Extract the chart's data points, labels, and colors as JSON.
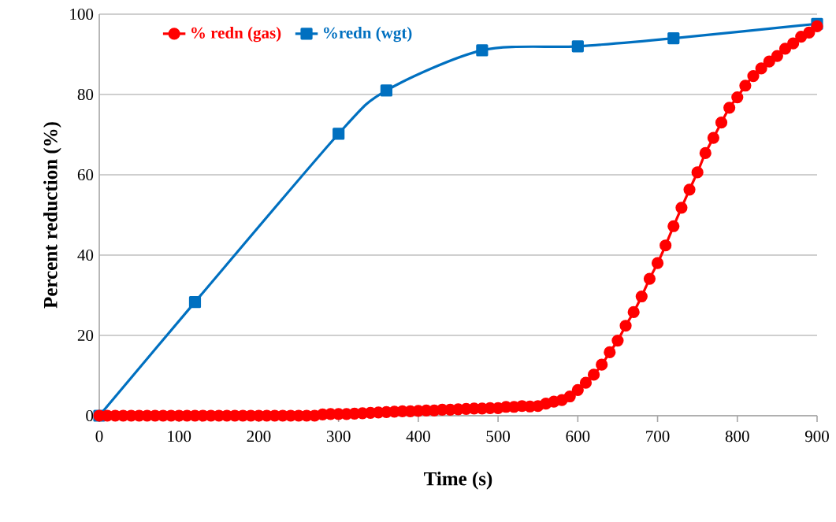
{
  "chart_data": {
    "type": "line",
    "xlabel": "Time (s)",
    "ylabel": "Percent reduction (%)",
    "xlim": [
      0,
      900
    ],
    "ylim": [
      0,
      100
    ],
    "xticks": [
      0,
      100,
      200,
      300,
      400,
      500,
      600,
      700,
      800,
      900
    ],
    "yticks": [
      0,
      20,
      40,
      60,
      80,
      100
    ],
    "grid": "y",
    "legend": "top left",
    "series": [
      {
        "name": "% redn (gas)",
        "color": "#ff0000",
        "marker": "circle",
        "x": [
          0,
          10,
          20,
          30,
          40,
          50,
          60,
          70,
          80,
          90,
          100,
          110,
          120,
          130,
          140,
          150,
          160,
          170,
          180,
          190,
          200,
          210,
          220,
          230,
          240,
          250,
          260,
          270,
          280,
          290,
          300,
          310,
          320,
          330,
          340,
          350,
          360,
          370,
          380,
          390,
          400,
          410,
          420,
          430,
          440,
          450,
          460,
          470,
          480,
          490,
          500,
          510,
          520,
          530,
          540,
          550,
          560,
          570,
          580,
          590,
          600,
          610,
          620,
          630,
          640,
          650,
          660,
          670,
          680,
          690,
          700,
          710,
          720,
          730,
          740,
          750,
          760,
          770,
          780,
          790,
          800,
          810,
          820,
          830,
          840,
          850,
          860,
          870,
          880,
          890,
          900
        ],
        "values": [
          0,
          0,
          0,
          0,
          0,
          0,
          0,
          0,
          0,
          0,
          0,
          0,
          0,
          0,
          0,
          0,
          0,
          0,
          0,
          0,
          0,
          0,
          0,
          0,
          0,
          0,
          0,
          0,
          0.3,
          0.4,
          0.4,
          0.4,
          0.5,
          0.6,
          0.7,
          0.8,
          0.9,
          1.0,
          1.1,
          1.1,
          1.2,
          1.3,
          1.3,
          1.5,
          1.5,
          1.6,
          1.7,
          1.8,
          1.8,
          1.9,
          1.9,
          2.2,
          2.2,
          2.4,
          2.3,
          2.4,
          3.0,
          3.5,
          3.9,
          4.8,
          6.4,
          8.2,
          10.2,
          12.7,
          15.8,
          18.7,
          22.4,
          25.8,
          29.7,
          34.1,
          38.0,
          42.4,
          47.2,
          51.8,
          56.3,
          60.6,
          65.4,
          69.2,
          73.0,
          76.7,
          79.3,
          82.2,
          84.6,
          86.5,
          88.2,
          89.6,
          91.4,
          92.7,
          94.4,
          95.4,
          97.0
        ]
      },
      {
        "name": "%redn (wgt)",
        "color": "#0070c0",
        "marker": "square",
        "x": [
          0,
          120,
          300,
          360,
          480,
          600,
          720,
          900
        ],
        "values": [
          0,
          28.3,
          70.2,
          81,
          91,
          92,
          94,
          97.6
        ]
      }
    ]
  }
}
